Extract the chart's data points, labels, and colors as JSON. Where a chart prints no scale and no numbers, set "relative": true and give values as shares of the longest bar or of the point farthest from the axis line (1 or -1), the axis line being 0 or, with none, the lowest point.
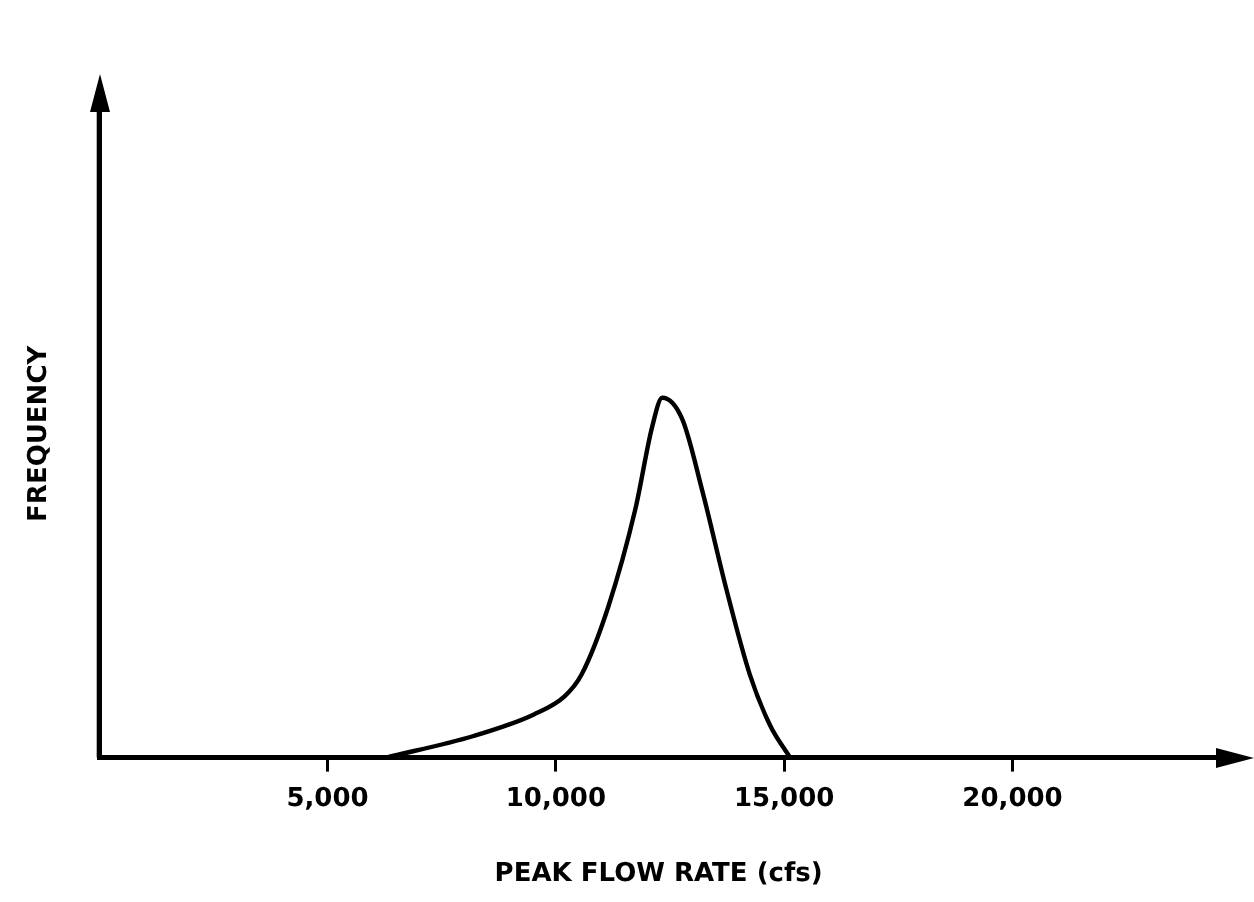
{
  "chart_data": {
    "type": "line",
    "xlabel": "PEAK FLOW RATE (cfs)",
    "ylabel": "FREQUENCY",
    "relative": true,
    "x": [
      6280,
      8200,
      9520,
      10190,
      10560,
      11150,
      11740,
      12110,
      12330,
      12770,
      13210,
      13730,
      14250,
      14690,
      15130
    ],
    "series": [
      {
        "color": "#000000",
        "values": [
          0,
          0.06,
          0.12,
          0.17,
          0.23,
          0.42,
          0.69,
          0.92,
          1,
          0.94,
          0.74,
          0.47,
          0.23,
          0.09,
          0
        ]
      }
    ],
    "xlim": [
      0,
      24500
    ],
    "xticks": [
      {
        "value": 5000,
        "label": "5,000"
      },
      {
        "value": 10000,
        "label": "10,000"
      },
      {
        "value": 15000,
        "label": "15,000"
      },
      {
        "value": 20000,
        "label": "20,000"
      }
    ],
    "grid": false,
    "legend": false,
    "marker": "none",
    "line_style": "solid"
  }
}
